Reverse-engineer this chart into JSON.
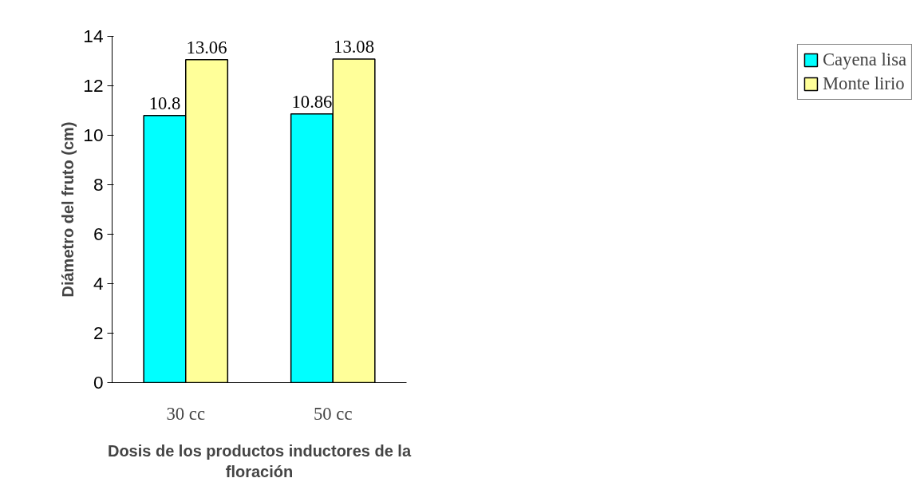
{
  "chart_data": {
    "type": "bar",
    "xlabel": "Dosis de los productos inductores de la floración",
    "ylabel": "Diámetro del fruto (cm)",
    "categories": [
      "30 cc",
      "50 cc"
    ],
    "series": [
      {
        "name": "Cayena lisa",
        "color": "#00ffff",
        "values": [
          10.8,
          10.86
        ]
      },
      {
        "name": "Monte lirio",
        "color": "#ffff99",
        "values": [
          13.06,
          13.08
        ]
      }
    ],
    "ylim": [
      0,
      14
    ],
    "yticks": [
      0,
      2,
      4,
      6,
      8,
      10,
      12,
      14
    ],
    "data_labels": true,
    "grid": false,
    "legend": "right"
  }
}
